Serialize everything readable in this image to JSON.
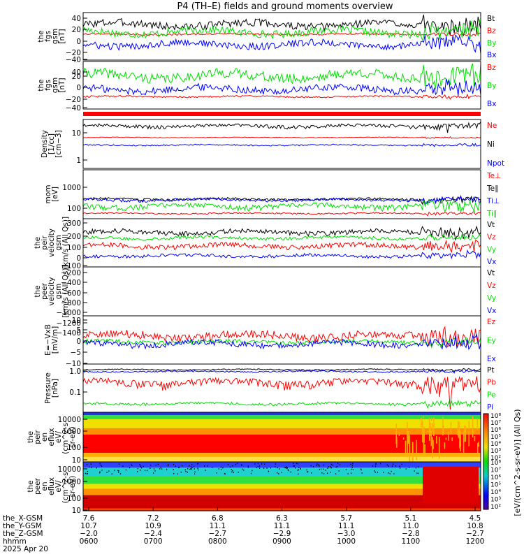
{
  "title": "P4 (TH–E) fields and ground moments overview",
  "colors": {
    "black": "#000000",
    "red": "#ff0000",
    "green": "#00e000",
    "blue": "#0000ff"
  },
  "chart_data": [
    {
      "type": "line",
      "ylabel_lines": [
        "the",
        "fgs",
        "gsm",
        "[nT]"
      ],
      "yticks": [
        "40",
        "20",
        "0",
        "−20",
        "−40"
      ],
      "ylim": [
        -45,
        55
      ],
      "series": [
        {
          "name": "Bt",
          "color": "black",
          "base": 32,
          "amp": 9
        },
        {
          "name": "Bz",
          "color": "red",
          "base": 10,
          "amp": 2
        },
        {
          "name": "By",
          "color": "green",
          "base": 15,
          "amp": 9
        },
        {
          "name": "Bx",
          "color": "blue",
          "base": -14,
          "amp": 8
        }
      ]
    },
    {
      "type": "line",
      "ylabel_lines": [
        "the",
        "fgs",
        "gsm",
        "[nT]"
      ],
      "yticks": [
        "40",
        "20",
        "0",
        "−20",
        "−40"
      ],
      "ylim": [
        -55,
        50
      ],
      "series": [
        {
          "name": "Bz",
          "color": "red",
          "base": -30,
          "amp": 2
        },
        {
          "name": "By",
          "color": "green",
          "base": 20,
          "amp": 12
        },
        {
          "name": "Bx",
          "color": "blue",
          "base": -12,
          "amp": 9
        }
      ]
    },
    {
      "type": "line",
      "ylabel_lines": [
        "Density",
        "[1/cc]",
        "[cm−3]"
      ],
      "yticks": [
        "10",
        "1"
      ],
      "scale": "log",
      "ylim": [
        0.5,
        30
      ],
      "series": [
        {
          "name": "Ne",
          "color": "red",
          "base": 7,
          "amp": 0.2
        },
        {
          "name": "Ni",
          "color": "black",
          "base": 20,
          "amp": 3
        },
        {
          "name": "Npot",
          "color": "blue",
          "base": 3.5,
          "amp": 0.2
        }
      ]
    },
    {
      "type": "line",
      "ylabel_lines": [
        "mom",
        "[eV]"
      ],
      "yticks": [
        "1000",
        "100"
      ],
      "scale": "log",
      "ylim": [
        50,
        5000
      ],
      "series": [
        {
          "name": "Te⊥",
          "color": "red",
          "base": 70,
          "amp": 5
        },
        {
          "name": "Te∥",
          "color": "black",
          "base": 300,
          "amp": 40
        },
        {
          "name": "Ti⊥",
          "color": "blue",
          "base": 280,
          "amp": 40
        },
        {
          "name": "Ti∥",
          "color": "green",
          "base": 150,
          "amp": 40
        }
      ]
    },
    {
      "type": "line",
      "ylabel_lines": [
        "the",
        "peir",
        "velocity",
        "gsm",
        "[km/s (All Qs)]"
      ],
      "yticks": [
        "300",
        "200",
        "100",
        "0",
        "−100",
        "−200"
      ],
      "ylim": [
        -220,
        320
      ],
      "series": [
        {
          "name": "Vt",
          "color": "black",
          "base": 180,
          "amp": 30
        },
        {
          "name": "Vz",
          "color": "red",
          "base": 10,
          "amp": 30
        },
        {
          "name": "Vy",
          "color": "green",
          "base": 110,
          "amp": 20
        },
        {
          "name": "Vx",
          "color": "blue",
          "base": -110,
          "amp": 20
        }
      ]
    },
    {
      "type": "line",
      "ylabel_lines": [
        "the",
        "peer",
        "velocity",
        "gsm",
        "[km/s (All Qs)]"
      ],
      "yticks": [
        "−200",
        "−400",
        "−600",
        "−800",
        "−1000",
        "−1200",
        "−1400"
      ],
      "ylim": [
        -1450,
        -100
      ],
      "series": [
        {
          "name": "Vt",
          "color": "black",
          "base": null,
          "amp": 0
        },
        {
          "name": "Vz",
          "color": "red",
          "base": null,
          "amp": 0
        },
        {
          "name": "Vy",
          "color": "green",
          "base": null,
          "amp": 0
        },
        {
          "name": "Vx",
          "color": "blue",
          "base": null,
          "amp": 0
        }
      ]
    },
    {
      "type": "line",
      "ylabel_lines": [
        "E=−VxB",
        "[mV/m]"
      ],
      "yticks": [
        "10",
        "5",
        "0",
        "−5",
        "−10"
      ],
      "ylim": [
        -11,
        11
      ],
      "series": [
        {
          "name": "Ez",
          "color": "red",
          "base": 2,
          "amp": 2
        },
        {
          "name": "Ey",
          "color": "green",
          "base": -1,
          "amp": 1
        },
        {
          "name": "Ex",
          "color": "blue",
          "base": -2,
          "amp": 1.5
        }
      ]
    },
    {
      "type": "line",
      "ylabel_lines": [
        "Pressure",
        "[nPa]"
      ],
      "yticks": [
        "1.0",
        "0.1"
      ],
      "scale": "log",
      "ylim": [
        0.025,
        1.3
      ],
      "series": [
        {
          "name": "Pt",
          "color": "black",
          "base": 0.95,
          "amp": 0.05
        },
        {
          "name": "Pb",
          "color": "red",
          "base": 0.3,
          "amp": 0.1
        },
        {
          "name": "Pe",
          "color": "green",
          "base": 0.045,
          "amp": 0.005
        },
        {
          "name": "Pi",
          "color": "blue",
          "base": 0.8,
          "amp": 0.05
        }
      ]
    },
    {
      "type": "heatmap",
      "ylabel_lines": [
        "the",
        "peir",
        "en",
        "eflux",
        "eV/",
        "(cm^2-s-",
        "sr-eV)"
      ],
      "yticks": [
        "10000",
        "1000",
        "100",
        "10"
      ],
      "scale": "log",
      "ylim": [
        5,
        20000
      ]
    },
    {
      "type": "heatmap",
      "ylabel_lines": [
        "the",
        "peer",
        "en",
        "eflux",
        "eV/",
        "(cm^2-s-",
        "sr-eV)"
      ],
      "yticks": [
        "10000",
        "1000",
        "100",
        "10"
      ],
      "scale": "log",
      "ylim": [
        5,
        20000
      ]
    }
  ],
  "colorbar": {
    "label": "[eV/(cm^2-s-sr-eV)] (All Qs)",
    "ticks_top": [
      "10⁸",
      "10⁷",
      "10⁶",
      "10⁵",
      "10⁴",
      "10³",
      "10²"
    ],
    "ticks_bottom": [
      "10⁸",
      "10⁷",
      "10⁶",
      "10⁵",
      "10⁴",
      "10³",
      "10²"
    ]
  },
  "xaxis": {
    "row_labels": [
      "the_X-GSM",
      "the_Y-GSM",
      "the_Z-GSM",
      "hhmm",
      "2025 Apr 20"
    ],
    "columns": [
      {
        "x": "7.6",
        "y": "10.7",
        "z": "−2.0",
        "t": "0600"
      },
      {
        "x": "7.2",
        "y": "10.9",
        "z": "−2.4",
        "t": "0700"
      },
      {
        "x": "6.8",
        "y": "11.1",
        "z": "−2.7",
        "t": "0800"
      },
      {
        "x": "6.3",
        "y": "11.1",
        "z": "−2.9",
        "t": "0900"
      },
      {
        "x": "5.7",
        "y": "11.1",
        "z": "−3.0",
        "t": "1000"
      },
      {
        "x": "5.1",
        "y": "11.0",
        "z": "−2.8",
        "t": "1100"
      },
      {
        "x": "4.5",
        "y": "10.8",
        "z": "−2.7",
        "t": "1200"
      }
    ]
  }
}
